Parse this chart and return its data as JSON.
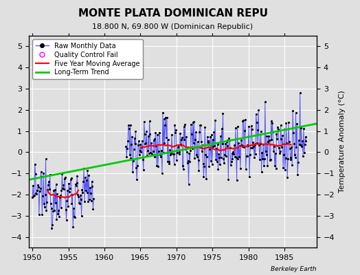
{
  "title": "MONTE PLATA DOMINICAN REPU",
  "subtitle": "18.800 N, 69.800 W (Dominican Republic)",
  "ylabel": "Temperature Anomaly (°C)",
  "credit": "Berkeley Earth",
  "xlim": [
    1949.5,
    1989.5
  ],
  "ylim": [
    -4.5,
    5.5
  ],
  "yticks": [
    -4,
    -3,
    -2,
    -1,
    0,
    1,
    2,
    3,
    4,
    5
  ],
  "xticks": [
    1950,
    1955,
    1960,
    1965,
    1970,
    1975,
    1980,
    1985
  ],
  "trend_x": [
    1949.5,
    1989.5
  ],
  "trend_y": [
    -1.3,
    1.35
  ],
  "raw_line_color": "#5555ff",
  "raw_dot_color": "#000000",
  "moving_avg_color": "#ff0000",
  "trend_color": "#00cc00",
  "qc_color": "#ff00ff",
  "background_color": "#e0e0e0",
  "grid_color": "#ffffff",
  "title_fontsize": 11,
  "subtitle_fontsize": 8,
  "label_fontsize": 8,
  "tick_fontsize": 8,
  "legend_fontsize": 7
}
